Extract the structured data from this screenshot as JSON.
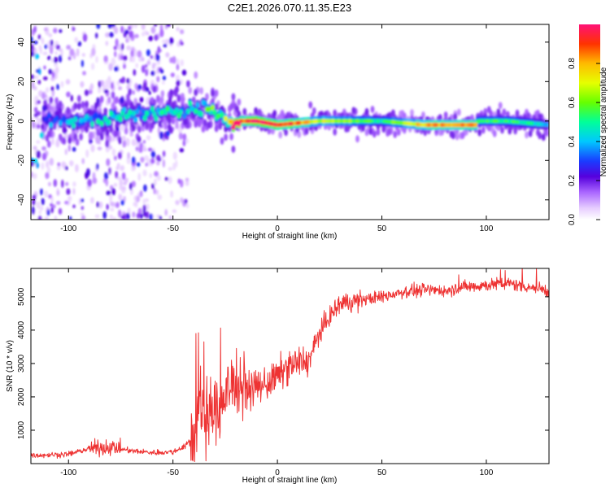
{
  "title": "C2E1.2026.070.11.35.E23",
  "chart_data": [
    {
      "type": "heatmap",
      "title": "C2E1.2026.070.11.35.E23",
      "xlabel": "Height of straight line (km)",
      "ylabel": "Frequency (Hz)",
      "xlim": [
        -118,
        130
      ],
      "ylim": [
        -50,
        49
      ],
      "xticks": [
        -100,
        -50,
        0,
        50,
        100
      ],
      "yticks": [
        -40,
        -20,
        0,
        20,
        40
      ],
      "colorbar": {
        "label": "Normalized spectral amplitude",
        "range": [
          0,
          1
        ],
        "ticks": [
          "0.0",
          "0.2",
          "0.4",
          "0.6",
          "0.8"
        ],
        "tick_values": [
          0.0,
          0.2,
          0.4,
          0.6,
          0.8
        ]
      },
      "ridge": {
        "description_x_km": [
          -112,
          -100,
          -85,
          -70,
          -60,
          -50,
          -40,
          -33,
          -26,
          -20,
          -10,
          0,
          20,
          50,
          70,
          95,
          96,
          110,
          130
        ],
        "center_freq_hz": [
          0,
          0,
          1,
          3,
          4,
          5,
          6,
          7,
          1,
          0,
          0,
          -2,
          0,
          0,
          -2,
          -2,
          0,
          0,
          -2
        ],
        "peak_amplitude": [
          0.3,
          0.35,
          0.4,
          0.4,
          0.4,
          0.45,
          0.45,
          0.5,
          0.5,
          0.9,
          0.95,
          0.95,
          0.7,
          0.5,
          0.8,
          0.85,
          0.5,
          0.55,
          0.4
        ]
      }
    },
    {
      "type": "line",
      "xlabel": "Height of straight line (km)",
      "ylabel": "SNR (10 * v/v)",
      "xlim": [
        -118,
        130
      ],
      "ylim": [
        0,
        5850
      ],
      "xticks": [
        -100,
        -50,
        0,
        50,
        100
      ],
      "yticks": [
        1000,
        2000,
        3000,
        4000,
        5000
      ],
      "color": "#ee3333",
      "series": [
        {
          "name": "SNR",
          "x": [
            -118,
            -110,
            -100,
            -90,
            -80,
            -70,
            -60,
            -50,
            -45,
            -40,
            -38,
            -35,
            -30,
            -25,
            -20,
            -15,
            -10,
            -5,
            0,
            5,
            10,
            15,
            20,
            25,
            30,
            40,
            50,
            60,
            70,
            80,
            90,
            100,
            110,
            120,
            130
          ],
          "y": [
            250,
            260,
            280,
            450,
            500,
            380,
            330,
            350,
            500,
            800,
            1500,
            1300,
            1600,
            2000,
            2600,
            2200,
            2300,
            2400,
            2600,
            2900,
            3000,
            3100,
            3900,
            4400,
            4800,
            4900,
            5000,
            5150,
            5200,
            5200,
            5300,
            5350,
            5400,
            5300,
            5200
          ]
        }
      ]
    }
  ]
}
